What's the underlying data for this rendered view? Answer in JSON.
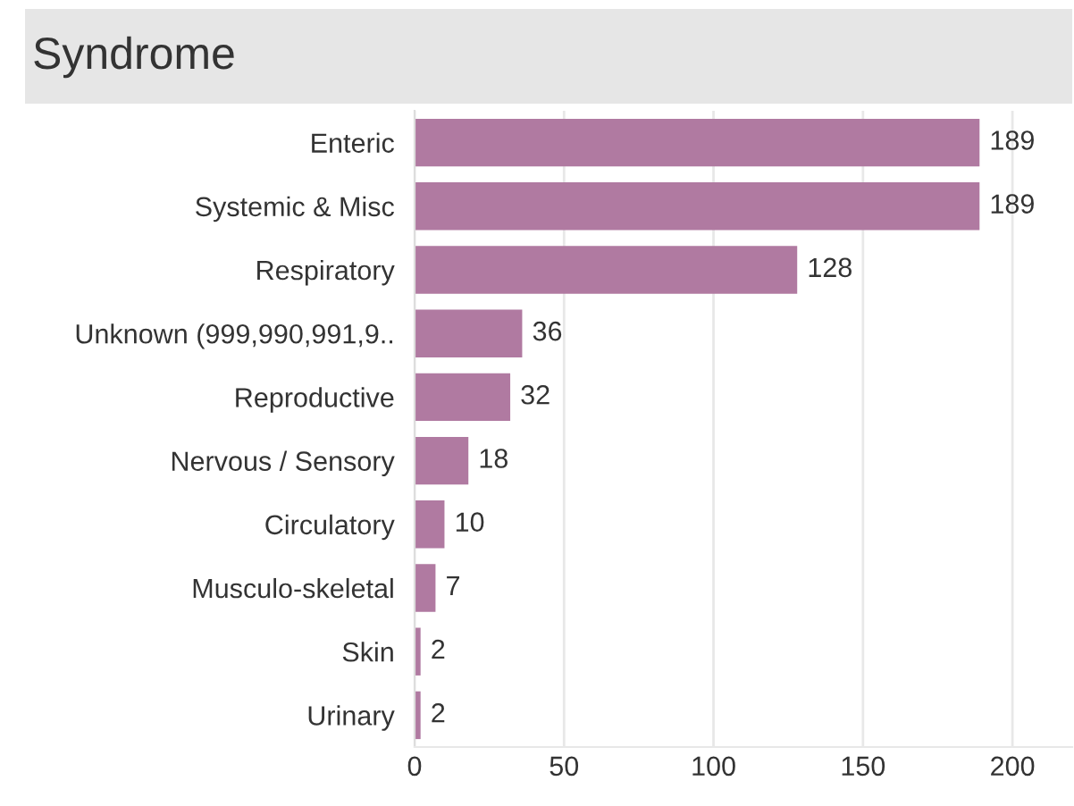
{
  "chart_data": {
    "type": "bar",
    "orientation": "horizontal",
    "title": "Syndrome",
    "categories": [
      "Enteric",
      "Systemic & Misc",
      "Respiratory",
      "Unknown (999,990,991,9..",
      "Reproductive",
      "Nervous / Sensory",
      "Circulatory",
      "Musculo-skeletal",
      "Skin",
      "Urinary"
    ],
    "values": [
      189,
      189,
      128,
      36,
      32,
      18,
      10,
      7,
      2,
      2
    ],
    "color": "#b07aa1",
    "xlim": [
      0,
      220
    ],
    "xticks": [
      0,
      50,
      100,
      150,
      200
    ],
    "grid": "x",
    "data_labels": true,
    "legend": false
  }
}
